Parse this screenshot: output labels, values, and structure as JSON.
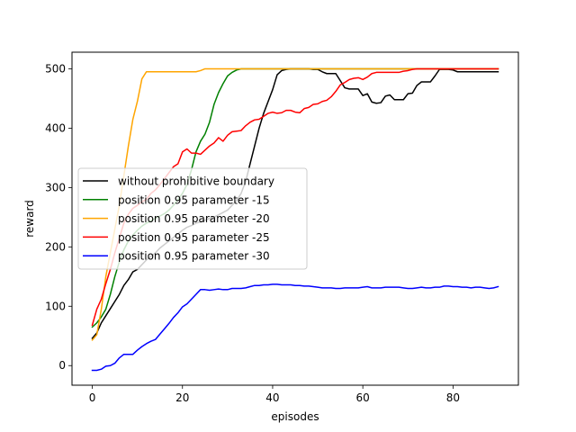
{
  "chart_data": {
    "type": "line",
    "title": "",
    "xlabel": "episodes",
    "ylabel": "reward",
    "xlim": [
      -4.5,
      94.5
    ],
    "ylim": [
      -33,
      528
    ],
    "xticks": [
      0,
      20,
      40,
      60,
      80
    ],
    "yticks": [
      0,
      100,
      200,
      300,
      400,
      500
    ],
    "grid": false,
    "legend_position": "center-left",
    "series": [
      {
        "name": "without prohibitive boundary",
        "color": "#000000",
        "x": [
          0,
          1,
          2,
          3,
          4,
          5,
          6,
          7,
          8,
          9,
          10,
          11,
          12,
          13,
          14,
          15,
          16,
          17,
          18,
          19,
          20,
          21,
          22,
          23,
          24,
          25,
          26,
          27,
          28,
          29,
          30,
          31,
          32,
          33,
          34,
          35,
          36,
          37,
          38,
          39,
          40,
          41,
          42,
          43,
          44,
          45,
          46,
          47,
          48,
          49,
          50,
          51,
          52,
          53,
          54,
          55,
          56,
          57,
          58,
          59,
          60,
          61,
          62,
          63,
          64,
          65,
          66,
          67,
          68,
          69,
          70,
          71,
          72,
          73,
          74,
          75,
          76,
          77,
          78,
          79,
          80,
          81,
          82,
          83,
          84,
          85,
          86,
          87,
          88,
          89,
          90
        ],
        "y": [
          46,
          55,
          72,
          84,
          96,
          108,
          120,
          135,
          145,
          158,
          162,
          170,
          178,
          184,
          190,
          198,
          204,
          210,
          216,
          222,
          228,
          233,
          236,
          240,
          242,
          245,
          248,
          250,
          254,
          258,
          262,
          270,
          278,
          290,
          310,
          340,
          370,
          400,
          425,
          445,
          465,
          490,
          497,
          499,
          500,
          500,
          500,
          500,
          500,
          499,
          499,
          495,
          492,
          492,
          492,
          480,
          468,
          466,
          466,
          466,
          455,
          458,
          444,
          442,
          443,
          454,
          456,
          448,
          448,
          448,
          458,
          459,
          472,
          478,
          478,
          478,
          488,
          499,
          499,
          499,
          498,
          495,
          495,
          495,
          495,
          495,
          495,
          495,
          495,
          495,
          495
        ]
      },
      {
        "name": "position 0.95 parameter -15",
        "color": "#008000",
        "x": [
          0,
          1,
          2,
          3,
          4,
          5,
          6,
          7,
          8,
          9,
          10,
          11,
          12,
          13,
          14,
          15,
          16,
          17,
          18,
          19,
          20,
          21,
          22,
          23,
          24,
          25,
          26,
          27,
          28,
          29,
          30,
          31,
          32,
          33,
          34,
          35,
          36,
          37,
          38,
          39,
          40,
          41,
          42,
          43,
          44,
          45,
          46,
          47,
          48,
          49,
          50,
          51,
          52,
          53,
          54,
          55,
          56,
          57,
          58,
          59,
          60,
          61,
          62,
          63,
          64,
          65,
          66,
          67,
          68,
          69,
          70,
          71,
          72,
          73,
          74,
          75,
          76,
          77,
          78,
          79,
          80,
          81,
          82,
          83,
          84,
          85,
          86,
          87,
          88,
          89,
          90
        ],
        "y": [
          65,
          72,
          82,
          95,
          120,
          150,
          175,
          195,
          210,
          220,
          228,
          235,
          240,
          244,
          248,
          252,
          256,
          262,
          270,
          280,
          290,
          305,
          330,
          360,
          378,
          390,
          410,
          440,
          460,
          475,
          488,
          494,
          498,
          500,
          500,
          500,
          500,
          500,
          500,
          500,
          500,
          500,
          500,
          500,
          500,
          500,
          500,
          500,
          500,
          500,
          500,
          500,
          500,
          500,
          500,
          500,
          500,
          500,
          500,
          500,
          500,
          500,
          500,
          500,
          500,
          500,
          500,
          500,
          500,
          500,
          500,
          500,
          500,
          500,
          500,
          500,
          500,
          500,
          500,
          500,
          500,
          500,
          500,
          500,
          500,
          500,
          500,
          500,
          500,
          500,
          500
        ]
      },
      {
        "name": "position 0.95 parameter -20",
        "color": "#ffa500",
        "x": [
          0,
          1,
          2,
          3,
          4,
          5,
          6,
          7,
          8,
          9,
          10,
          11,
          12,
          13,
          14,
          15,
          16,
          17,
          18,
          19,
          20,
          21,
          22,
          23,
          24,
          25,
          26,
          27,
          28,
          29,
          30,
          31,
          32,
          33,
          34,
          35,
          36,
          37,
          38,
          39,
          40,
          41,
          42,
          43,
          44,
          45,
          46,
          47,
          48,
          49,
          50,
          51,
          52,
          53,
          54,
          55,
          56,
          57,
          58,
          59,
          60,
          61,
          62,
          63,
          64,
          65,
          66,
          67,
          68,
          69,
          70,
          71,
          72,
          73,
          74,
          75,
          76,
          77,
          78,
          79,
          80,
          81,
          82,
          83,
          84,
          85,
          86,
          87,
          88,
          89,
          90
        ],
        "y": [
          43,
          52,
          95,
          150,
          190,
          230,
          270,
          320,
          370,
          415,
          445,
          483,
          495,
          495,
          495,
          495,
          495,
          495,
          495,
          495,
          495,
          495,
          495,
          495,
          497,
          500,
          500,
          500,
          500,
          500,
          500,
          500,
          500,
          500,
          500,
          500,
          500,
          500,
          500,
          500,
          500,
          500,
          500,
          500,
          500,
          500,
          500,
          500,
          500,
          500,
          500,
          500,
          500,
          500,
          500,
          500,
          500,
          500,
          500,
          500,
          500,
          500,
          500,
          500,
          500,
          500,
          500,
          500,
          500,
          500,
          500,
          500,
          500,
          500,
          500,
          500,
          500,
          500,
          500,
          500,
          500,
          500,
          500,
          500,
          500,
          500,
          500,
          500,
          500,
          500,
          500
        ]
      },
      {
        "name": "position 0.95 parameter -25",
        "color": "#ff0000",
        "x": [
          0,
          1,
          2,
          3,
          4,
          5,
          6,
          7,
          8,
          9,
          10,
          11,
          12,
          13,
          14,
          15,
          16,
          17,
          18,
          19,
          20,
          21,
          22,
          23,
          24,
          25,
          26,
          27,
          28,
          29,
          30,
          31,
          32,
          33,
          34,
          35,
          36,
          37,
          38,
          39,
          40,
          41,
          42,
          43,
          44,
          45,
          46,
          47,
          48,
          49,
          50,
          51,
          52,
          53,
          54,
          55,
          56,
          57,
          58,
          59,
          60,
          61,
          62,
          63,
          64,
          65,
          66,
          67,
          68,
          69,
          70,
          71,
          72,
          73,
          74,
          75,
          76,
          77,
          78,
          79,
          80,
          81,
          82,
          83,
          84,
          85,
          86,
          87,
          88,
          89,
          90
        ],
        "y": [
          68,
          95,
          112,
          138,
          162,
          190,
          215,
          240,
          255,
          265,
          270,
          276,
          280,
          290,
          296,
          305,
          315,
          325,
          335,
          340,
          360,
          365,
          358,
          358,
          356,
          363,
          370,
          375,
          384,
          378,
          388,
          394,
          395,
          396,
          404,
          410,
          414,
          415,
          420,
          425,
          427,
          425,
          426,
          430,
          430,
          427,
          426,
          433,
          435,
          440,
          441,
          445,
          447,
          453,
          462,
          473,
          477,
          482,
          484,
          485,
          482,
          486,
          492,
          494,
          494,
          494,
          494,
          494,
          494,
          496,
          497,
          499,
          500,
          500,
          500,
          500,
          500,
          500,
          500,
          500,
          500,
          500,
          500,
          500,
          500,
          500,
          500,
          500,
          500,
          500,
          500
        ]
      },
      {
        "name": "position 0.95 parameter -30",
        "color": "#0000ff",
        "x": [
          0,
          1,
          2,
          3,
          4,
          5,
          6,
          7,
          8,
          9,
          10,
          11,
          12,
          13,
          14,
          15,
          16,
          17,
          18,
          19,
          20,
          21,
          22,
          23,
          24,
          25,
          26,
          27,
          28,
          29,
          30,
          31,
          32,
          33,
          34,
          35,
          36,
          37,
          38,
          39,
          40,
          41,
          42,
          43,
          44,
          45,
          46,
          47,
          48,
          49,
          50,
          51,
          52,
          53,
          54,
          55,
          56,
          57,
          58,
          59,
          60,
          61,
          62,
          63,
          64,
          65,
          66,
          67,
          68,
          69,
          70,
          71,
          72,
          73,
          74,
          75,
          76,
          77,
          78,
          79,
          80,
          81,
          82,
          83,
          84,
          85,
          86,
          87,
          88,
          89,
          90
        ],
        "y": [
          -8,
          -8,
          -6,
          -1,
          0,
          4,
          13,
          19,
          19,
          19,
          26,
          32,
          37,
          41,
          44,
          53,
          62,
          71,
          81,
          89,
          99,
          104,
          112,
          120,
          128,
          128,
          127,
          128,
          129,
          128,
          128,
          130,
          130,
          130,
          131,
          133,
          135,
          135,
          136,
          136,
          137,
          137,
          136,
          136,
          136,
          135,
          135,
          134,
          134,
          133,
          132,
          131,
          131,
          131,
          130,
          130,
          131,
          131,
          131,
          131,
          132,
          133,
          131,
          131,
          131,
          132,
          132,
          132,
          132,
          131,
          130,
          130,
          131,
          132,
          131,
          131,
          132,
          132,
          134,
          134,
          133,
          133,
          132,
          132,
          131,
          132,
          132,
          131,
          130,
          131,
          133
        ]
      }
    ]
  }
}
